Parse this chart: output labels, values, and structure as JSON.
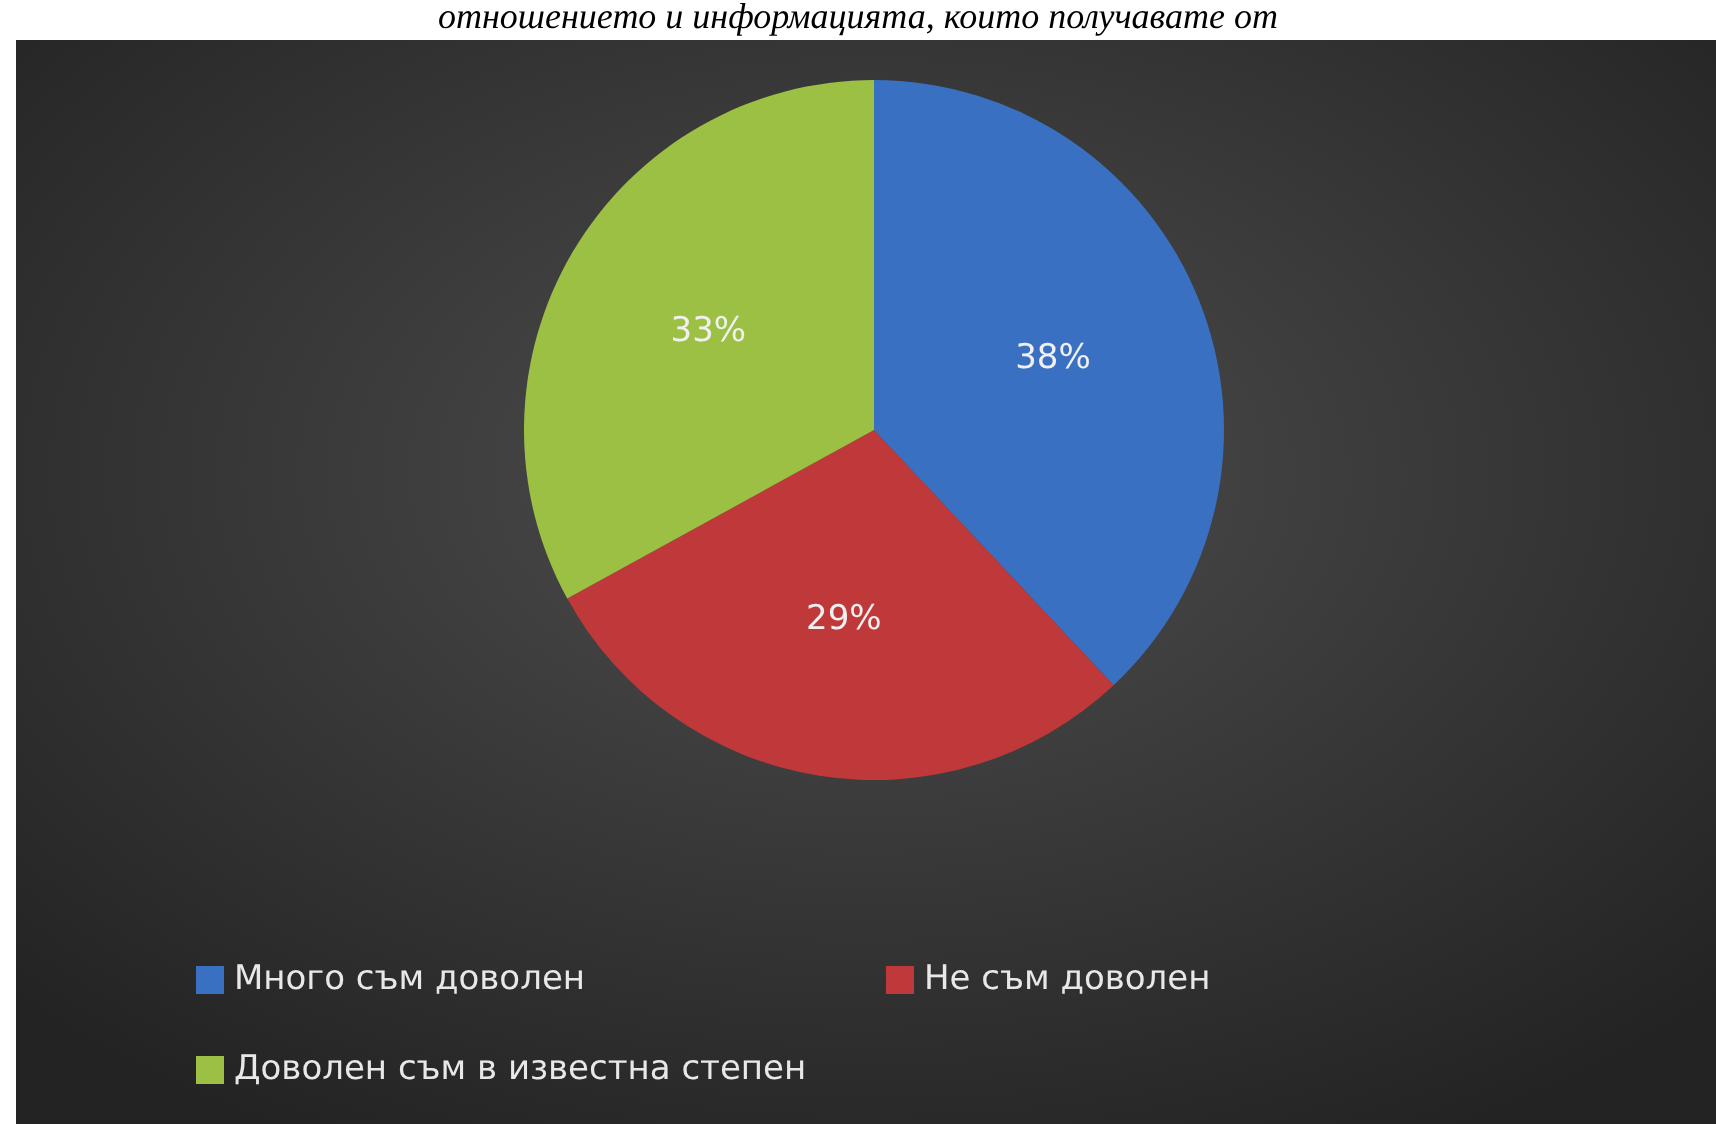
{
  "chart_data": {
    "type": "pie",
    "title": "отношението и информацията, които получавате от",
    "categories": [
      "Много съм доволен",
      "Не съм доволен",
      "Доволен съм в известна степен"
    ],
    "values": [
      38,
      29,
      33
    ],
    "colors": [
      "#3a70c2",
      "#c0393a",
      "#9bc044"
    ],
    "value_labels": [
      "38%",
      "29%",
      "33%"
    ],
    "legend": "bottom"
  }
}
